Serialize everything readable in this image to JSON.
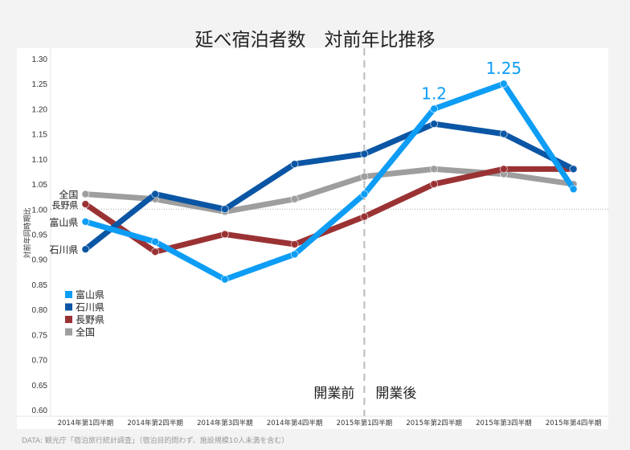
{
  "chart_data": {
    "type": "line",
    "title": "延べ宿泊者数　対前年比推移",
    "ylabel": "対前年同時期比",
    "xlabel": "",
    "ylim": [
      0.6,
      1.3
    ],
    "yticks": [
      "0.60",
      "0.65",
      "0.70",
      "0.75",
      "0.80",
      "0.85",
      "0.90",
      "0.95",
      "1.00",
      "1.05",
      "1.10",
      "1.15",
      "1.20",
      "1.25",
      "1.30"
    ],
    "reference_line": 1.0,
    "categories": [
      "2014年第1四半期",
      "2014年第2四半期",
      "2014年第3四半期",
      "2014年第4四半期",
      "2015年第1四半期",
      "2015年第2四半期",
      "2015年第3四半期",
      "2015年第4四半期"
    ],
    "divider": {
      "after_index": 4,
      "before_label": "開業前",
      "after_label": "開業後"
    },
    "series": [
      {
        "name": "全国",
        "color": "#9e9e9e",
        "values": [
          1.03,
          1.02,
          0.995,
          1.02,
          1.065,
          1.08,
          1.07,
          1.05
        ]
      },
      {
        "name": "長野県",
        "color": "#9a3234",
        "values": [
          1.01,
          0.915,
          0.95,
          0.93,
          0.985,
          1.05,
          1.08,
          1.08
        ]
      },
      {
        "name": "石川県",
        "color": "#0b56a4",
        "values": [
          0.92,
          1.03,
          1.0,
          1.09,
          1.11,
          1.17,
          1.15,
          1.08
        ]
      },
      {
        "name": "富山県",
        "color": "#0d9df5",
        "values": [
          0.975,
          0.935,
          0.86,
          0.91,
          1.03,
          1.2,
          1.25,
          1.04
        ]
      }
    ],
    "annotations": [
      {
        "series": "富山県",
        "index": 5,
        "text": "1.2"
      },
      {
        "series": "富山県",
        "index": 6,
        "text": "1.25"
      }
    ],
    "legend": {
      "placement": "left",
      "order": [
        "富山県",
        "石川県",
        "長野県",
        "全国"
      ]
    },
    "grid": false
  },
  "footer": "DATA: 観光庁「宿泊旅行統計調査」（宿泊目的問わず、施設規模10人未満を含む）"
}
